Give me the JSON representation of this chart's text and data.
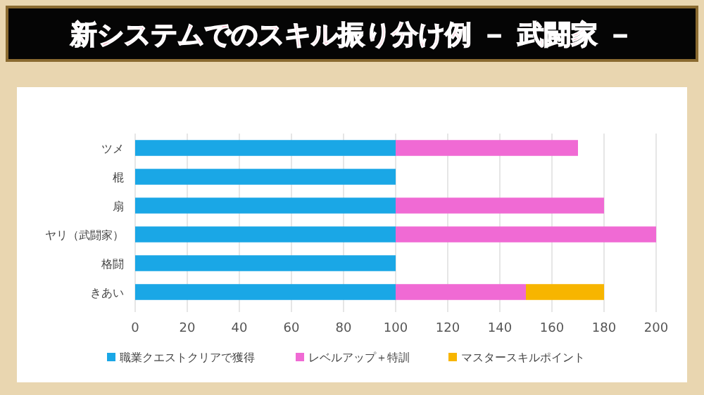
{
  "chart_data": {
    "type": "bar",
    "orientation": "horizontal",
    "stacked": true,
    "title": "新システムでのスキル振り分け例 － 武闘家 －",
    "categories": [
      "ツメ",
      "棍",
      "扇",
      "ヤリ（武闘家）",
      "格闘",
      "きあい"
    ],
    "series": [
      {
        "name": "職業クエストクリアで獲得",
        "color": "#1aa7e6",
        "values": [
          100,
          100,
          100,
          100,
          100,
          100
        ]
      },
      {
        "name": "レベルアップ＋特訓",
        "color": "#f06ad4",
        "values": [
          70,
          null,
          80,
          100,
          null,
          50
        ]
      },
      {
        "name": "マスタースキルポイント",
        "color": "#f7b500",
        "values": [
          null,
          null,
          null,
          null,
          null,
          30
        ]
      }
    ],
    "xlim": [
      0,
      200
    ],
    "xticks": [
      0,
      20,
      40,
      60,
      80,
      100,
      120,
      140,
      160,
      180,
      200
    ],
    "grid": "x",
    "legend": "bottom"
  }
}
